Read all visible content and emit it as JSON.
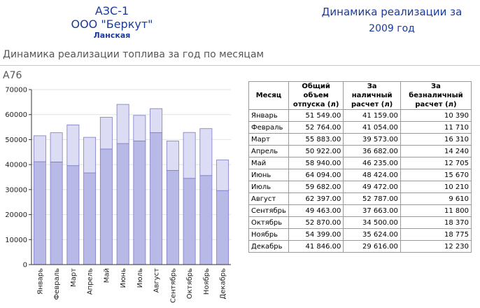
{
  "header": {
    "station": "АЗС-1",
    "company": "ООО \"Беркут\"",
    "location": "Ланская",
    "report_title": "Динамика реализации за",
    "report_year": "2009 год"
  },
  "chart_data": {
    "type": "stacked_bar",
    "title": "Динамика реализации топлива за год по месяцам",
    "label": "А76",
    "categories": [
      "Январь",
      "Февраль",
      "Март",
      "Апрель",
      "Май",
      "Июнь",
      "Июль",
      "Август",
      "Сентябрь",
      "Октябрь",
      "Ноябрь",
      "Декабрь"
    ],
    "series": [
      {
        "color": "#b9b9e8",
        "values": [
          41159,
          41054,
          39573,
          36682,
          46235,
          48424,
          49472,
          52787,
          37663,
          34500,
          35624,
          29616
        ]
      },
      {
        "color": "#dcdcf5",
        "values": [
          10390,
          11710,
          16310,
          14240,
          12705,
          15670,
          10210,
          9610,
          11800,
          18370,
          18775,
          12230
        ]
      }
    ],
    "ylim": [
      0,
      70000
    ],
    "yticks": [
      0,
      10000,
      20000,
      30000,
      40000,
      50000,
      60000,
      70000
    ],
    "grid": true
  },
  "table": {
    "columns": [
      "Месяц",
      "Общий объем отпуска (л)",
      "За наличный расчет (л)",
      "За безналичный расчет (л)"
    ],
    "rows": [
      [
        "Январь",
        "51 549.00",
        "41 159.00",
        "10 390"
      ],
      [
        "Февраль",
        "52 764.00",
        "41 054.00",
        "11 710"
      ],
      [
        "Март",
        "55 883.00",
        "39 573.00",
        "16 310"
      ],
      [
        "Апрель",
        "50 922.00",
        "36 682.00",
        "14 240"
      ],
      [
        "Май",
        "58 940.00",
        "46 235.00",
        "12 705"
      ],
      [
        "Июнь",
        "64 094.00",
        "48 424.00",
        "15 670"
      ],
      [
        "Июль",
        "59 682.00",
        "49 472.00",
        "10 210"
      ],
      [
        "Август",
        "62 397.00",
        "52 787.00",
        "9 610"
      ],
      [
        "Сентябрь",
        "49 463.00",
        "37 663.00",
        "11 800"
      ],
      [
        "Октябрь",
        "52 870.00",
        "34 500.00",
        "18 370"
      ],
      [
        "Ноябрь",
        "54 399.00",
        "35 624.00",
        "18 775"
      ],
      [
        "Декабрь",
        "41 846.00",
        "29 616.00",
        "12 230"
      ]
    ]
  }
}
